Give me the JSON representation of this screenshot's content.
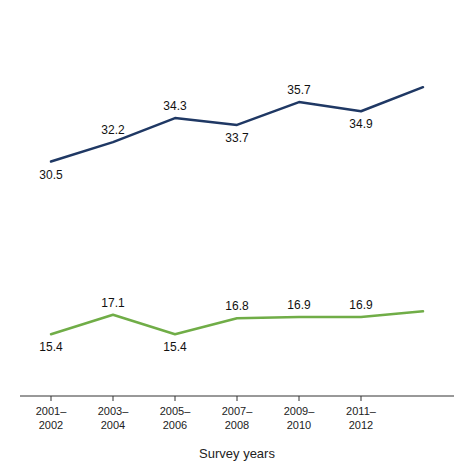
{
  "chart_data": {
    "type": "line",
    "x_label": "Survey years",
    "categories": [
      "2001–\n2002",
      "2003–\n2004",
      "2005–\n2006",
      "2007–\n2008",
      "2009–\n2010",
      "2011–\n2012",
      null
    ],
    "series": [
      {
        "color": "#1f3864",
        "values": [
          30.5,
          32.2,
          34.3,
          33.7,
          35.7,
          34.9,
          37.0
        ],
        "value_labels": [
          "30.5",
          "32.2",
          "34.3",
          "33.7",
          "35.7",
          "34.9",
          null
        ]
      },
      {
        "color": "#70ad47",
        "values": [
          15.4,
          17.1,
          15.4,
          16.8,
          16.9,
          16.9,
          17.4
        ],
        "value_labels": [
          "15.4",
          "17.1",
          "15.4",
          "16.8",
          "16.9",
          "16.9",
          null
        ]
      }
    ],
    "ylim": [
      10,
      42
    ],
    "data_labels": true,
    "tick_labels": "x",
    "grid": false
  }
}
